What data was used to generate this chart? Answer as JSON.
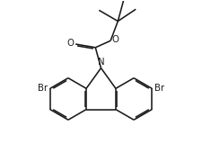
{
  "background_color": "#ffffff",
  "line_color": "#1a1a1a",
  "line_width": 1.15,
  "font_size": 6.8,
  "figsize": [
    2.25,
    1.8
  ],
  "dpi": 100,
  "xlim": [
    1.0,
    9.0
  ],
  "ylim": [
    1.5,
    9.5
  ]
}
